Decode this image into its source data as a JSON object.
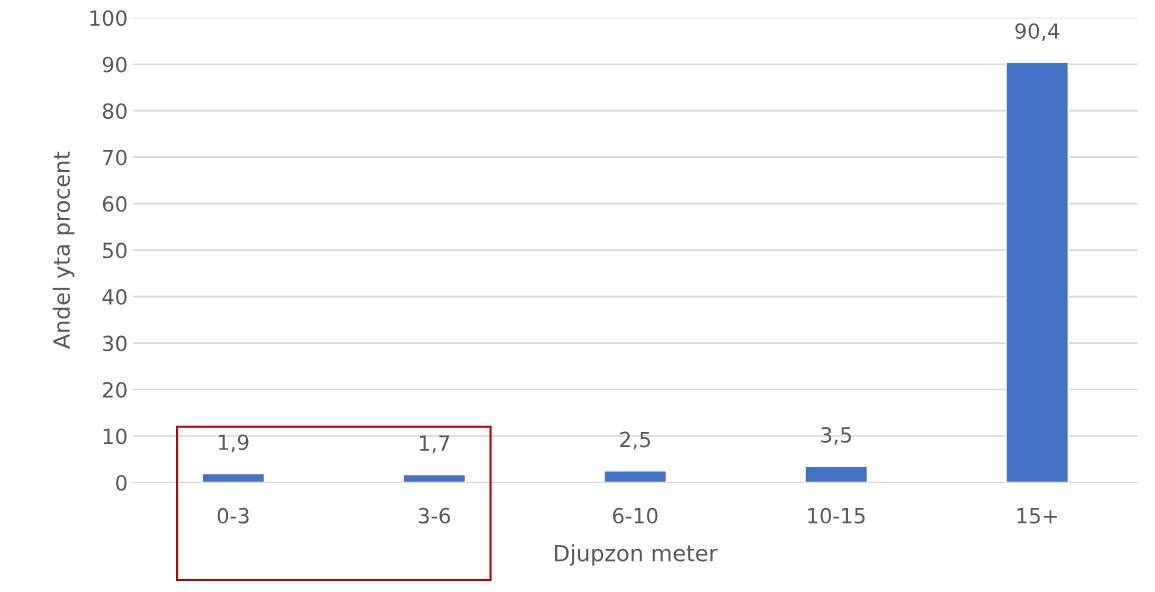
{
  "chart_data": {
    "type": "bar",
    "xlabel": "Djupzon meter",
    "ylabel": "Andel yta procent",
    "categories": [
      "0-3",
      "3-6",
      "6-10",
      "10-15",
      "15+"
    ],
    "values": [
      1.9,
      1.7,
      2.5,
      3.5,
      90.4
    ],
    "value_labels": [
      "1,9",
      "1,7",
      "2,5",
      "3,5",
      "90,4"
    ],
    "color": "#4472c4",
    "ylim": [
      0,
      100
    ],
    "yticks": [
      0,
      10,
      20,
      30,
      40,
      50,
      60,
      70,
      80,
      90,
      100
    ],
    "grid": "y",
    "legend": false
  }
}
